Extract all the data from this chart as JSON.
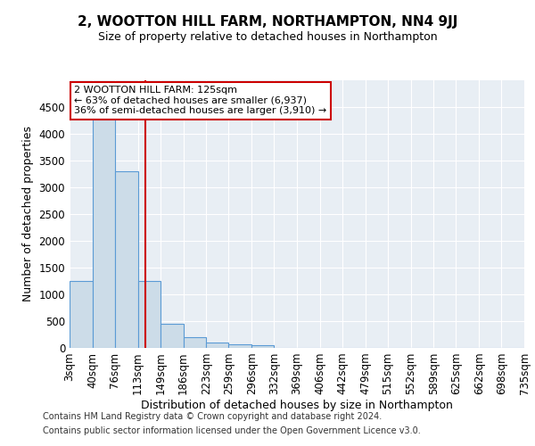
{
  "title": "2, WOOTTON HILL FARM, NORTHAMPTON, NN4 9JJ",
  "subtitle": "Size of property relative to detached houses in Northampton",
  "xlabel": "Distribution of detached houses by size in Northampton",
  "ylabel": "Number of detached properties",
  "property_size": 125,
  "property_label": "2 WOOTTON HILL FARM: 125sqm",
  "annotation_line1": "← 63% of detached houses are smaller (6,937)",
  "annotation_line2": "36% of semi-detached houses are larger (3,910) →",
  "footer_line1": "Contains HM Land Registry data © Crown copyright and database right 2024.",
  "footer_line2": "Contains public sector information licensed under the Open Government Licence v3.0.",
  "bin_edges": [
    3,
    40,
    76,
    113,
    149,
    186,
    223,
    259,
    296,
    332,
    369,
    406,
    442,
    479,
    515,
    552,
    589,
    625,
    662,
    698,
    735
  ],
  "bar_heights": [
    1250,
    4350,
    3300,
    1250,
    450,
    200,
    100,
    70,
    50,
    0,
    0,
    0,
    0,
    0,
    0,
    0,
    0,
    0,
    0,
    0
  ],
  "bar_color": "#ccdce8",
  "bar_edge_color": "#5b9bd5",
  "red_line_color": "#cc0000",
  "annotation_box_color": "#cc0000",
  "background_color": "#e8eef4",
  "grid_color": "#ffffff",
  "ylim": [
    0,
    5000
  ],
  "yticks": [
    0,
    500,
    1000,
    1500,
    2000,
    2500,
    3000,
    3500,
    4000,
    4500
  ],
  "title_fontsize": 11,
  "subtitle_fontsize": 9,
  "label_fontsize": 9,
  "tick_fontsize": 8.5,
  "annot_fontsize": 8,
  "footer_fontsize": 7
}
